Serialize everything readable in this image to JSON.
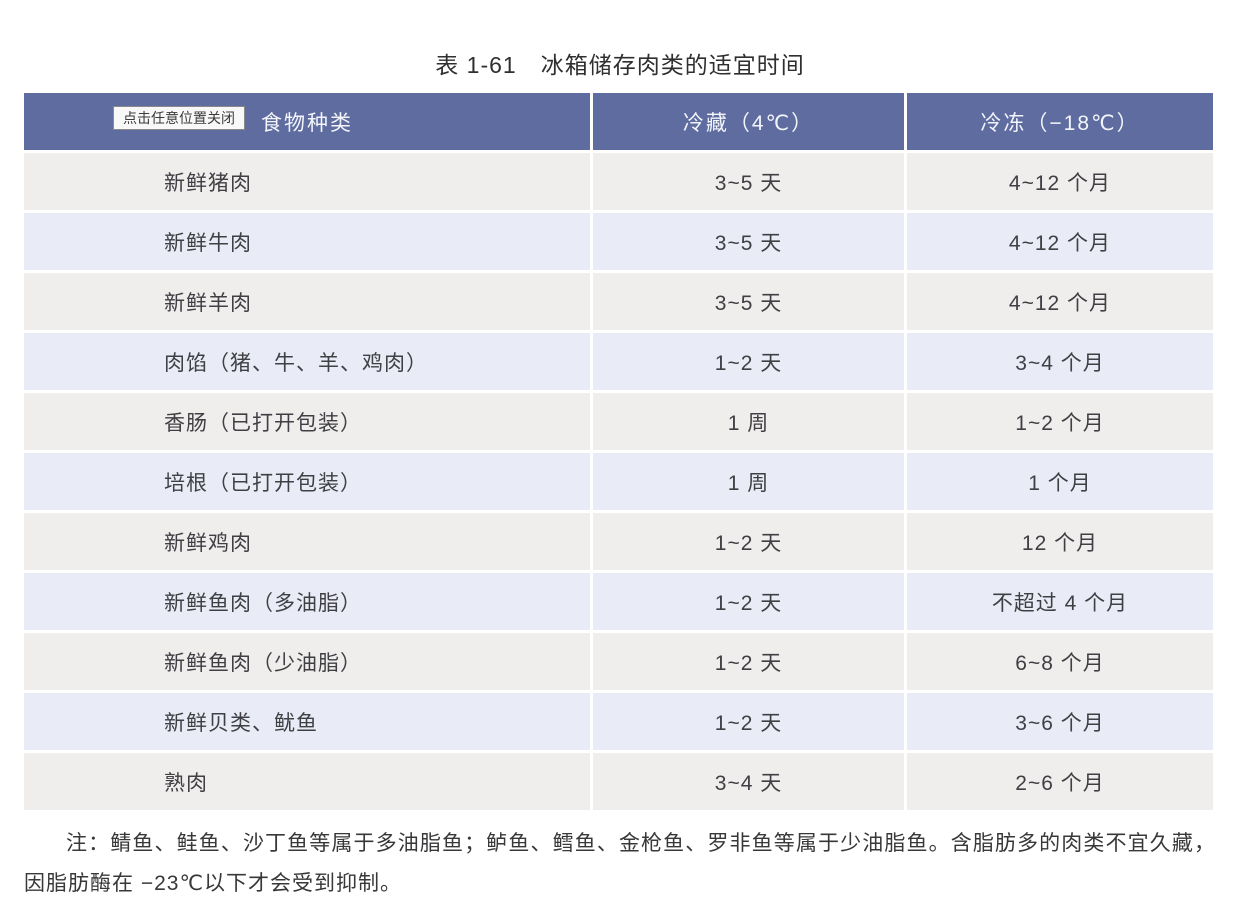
{
  "page": {
    "title": "表 1-61　冰箱储存肉类的适宜时间"
  },
  "tooltip": {
    "text": "点击任意位置关闭"
  },
  "table": {
    "headers": [
      "食物种类",
      "冷藏（4℃）",
      "冷冻（−18℃）"
    ],
    "rows": [
      {
        "food": "新鲜猪肉",
        "fridge": "3~5 天",
        "freezer": "4~12 个月"
      },
      {
        "food": "新鲜牛肉",
        "fridge": "3~5 天",
        "freezer": "4~12 个月"
      },
      {
        "food": "新鲜羊肉",
        "fridge": "3~5 天",
        "freezer": "4~12 个月"
      },
      {
        "food": "肉馅（猪、牛、羊、鸡肉）",
        "fridge": "1~2 天",
        "freezer": "3~4 个月"
      },
      {
        "food": "香肠（已打开包装）",
        "fridge": "1 周",
        "freezer": "1~2 个月"
      },
      {
        "food": "培根（已打开包装）",
        "fridge": "1 周",
        "freezer": "1 个月"
      },
      {
        "food": "新鲜鸡肉",
        "fridge": "1~2 天",
        "freezer": "12 个月"
      },
      {
        "food": "新鲜鱼肉（多油脂）",
        "fridge": "1~2 天",
        "freezer": "不超过 4 个月"
      },
      {
        "food": "新鲜鱼肉（少油脂）",
        "fridge": "1~2 天",
        "freezer": "6~8 个月"
      },
      {
        "food": "新鲜贝类、鱿鱼",
        "fridge": "1~2 天",
        "freezer": "3~6 个月"
      },
      {
        "food": "熟肉",
        "fridge": "3~4 天",
        "freezer": "2~6 个月"
      }
    ]
  },
  "note": {
    "text": "注：鲭鱼、鲑鱼、沙丁鱼等属于多油脂鱼；鲈鱼、鳕鱼、金枪鱼、罗非鱼等属于少油脂鱼。含脂肪多的肉类不宜久藏，因脂肪酶在 −23℃以下才会受到抑制。"
  },
  "colors": {
    "header_bg": "#5e6c9f",
    "header_text": "#f3f5fb",
    "row_odd_bg": "#e9ecf6",
    "row_even_bg": "#efeeec",
    "body_text": "#3f3f44"
  }
}
